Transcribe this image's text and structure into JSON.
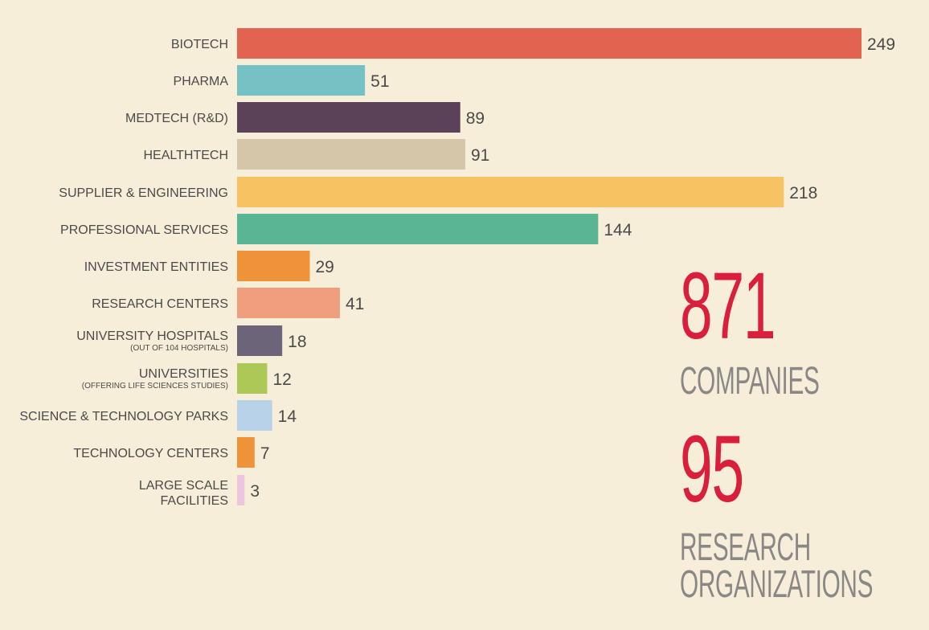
{
  "chart_data": {
    "type": "bar",
    "orientation": "horizontal",
    "xlim": [
      0,
      249
    ],
    "grid": false,
    "categories": [
      {
        "label": "BIOTECH",
        "sublabel": "",
        "value": 249,
        "color": "#e36351"
      },
      {
        "label": "PHARMA",
        "sublabel": "",
        "value": 51,
        "color": "#76c1c3"
      },
      {
        "label": "MEDTECH (R&D)",
        "sublabel": "",
        "value": 89,
        "color": "#5c4259"
      },
      {
        "label": "HEALTHTECH",
        "sublabel": "",
        "value": 91,
        "color": "#d6c6a9"
      },
      {
        "label": "SUPPLIER & ENGINEERING",
        "sublabel": "",
        "value": 218,
        "color": "#f6c262"
      },
      {
        "label": "PROFESSIONAL SERVICES",
        "sublabel": "",
        "value": 144,
        "color": "#5ab594"
      },
      {
        "label": "INVESTMENT ENTITIES",
        "sublabel": "",
        "value": 29,
        "color": "#ef923a"
      },
      {
        "label": "RESEARCH CENTERS",
        "sublabel": "",
        "value": 41,
        "color": "#ef9e7e"
      },
      {
        "label": "UNIVERSITY HOSPITALS",
        "sublabel": "(OUT OF 104 HOSPITALS)",
        "value": 18,
        "color": "#6c6479"
      },
      {
        "label": "UNIVERSITIES",
        "sublabel": "(OFFERING LIFE SCIENCES STUDIES)",
        "value": 12,
        "color": "#acc957"
      },
      {
        "label": "SCIENCE & TECHNOLOGY PARKS",
        "sublabel": "",
        "value": 14,
        "color": "#b8d2ea"
      },
      {
        "label": "TECHNOLOGY CENTERS",
        "sublabel": "",
        "value": 7,
        "color": "#ef923a"
      },
      {
        "label": "LARGE SCALE\nFACILITIES",
        "sublabel": "",
        "value": 3,
        "color": "#ecc6dc"
      }
    ]
  },
  "stats": {
    "companies": {
      "number": "871",
      "caption_lines": [
        "COMPANIES"
      ]
    },
    "research": {
      "number": "95",
      "caption_lines": [
        "RESEARCH",
        "ORGANIZATIONS"
      ]
    }
  },
  "colors": {
    "background": "#f7eed9",
    "highlight": "#d91f3b",
    "caption": "#8a8887",
    "text": "#4a4a4a"
  }
}
